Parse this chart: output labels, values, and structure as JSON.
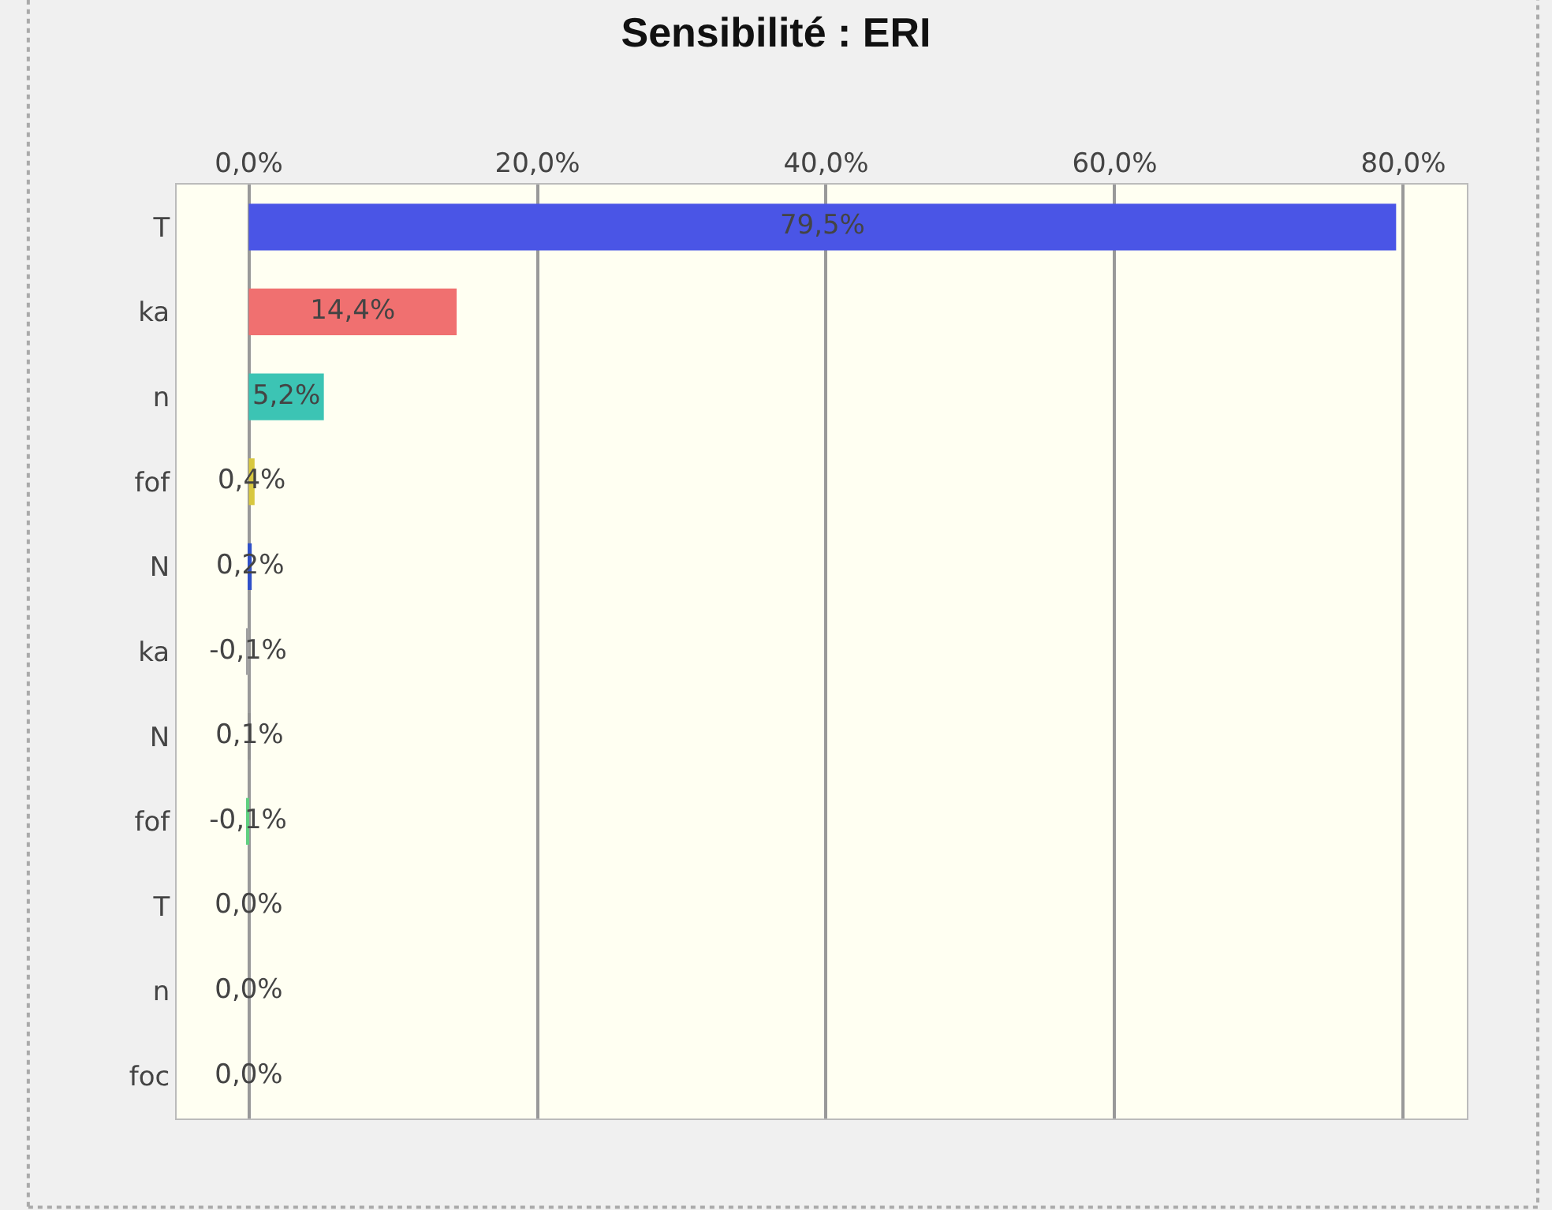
{
  "chart_data": {
    "type": "bar",
    "orientation": "horizontal",
    "title": "Sensibilité : ERI",
    "categories": [
      "T",
      "ka",
      "n",
      "fof",
      "N",
      "ka",
      "N",
      "fof",
      "T",
      "n",
      "foc"
    ],
    "values": [
      79.5,
      14.4,
      5.2,
      0.4,
      0.2,
      -0.1,
      0.1,
      -0.1,
      0,
      0,
      0
    ],
    "colors": [
      "#4a55e6",
      "#f07070",
      "#3cc4b4",
      "#d8c840",
      "#3050c8",
      "#a0a0a0",
      "#909090",
      "#60d080",
      "#a0a0a0",
      "#a0a0a0",
      "#a0a0a0"
    ],
    "value_labels": [
      "79,5%",
      "14,4%",
      "5,2%",
      "0,4%",
      "0,2%",
      "-0,1%",
      "0,1%",
      "-0,1%",
      "0,0%",
      "0,0%",
      "0,0%"
    ],
    "xlim": [
      -5,
      84.4
    ],
    "xticks": [
      {
        "value": 0,
        "label": "0,0%"
      },
      {
        "value": 20,
        "label": "20,0%"
      },
      {
        "value": 40,
        "label": "40,0%"
      },
      {
        "value": 60,
        "label": "60,0%"
      },
      {
        "value": 80,
        "label": "80,0%"
      }
    ],
    "grid": "x"
  }
}
